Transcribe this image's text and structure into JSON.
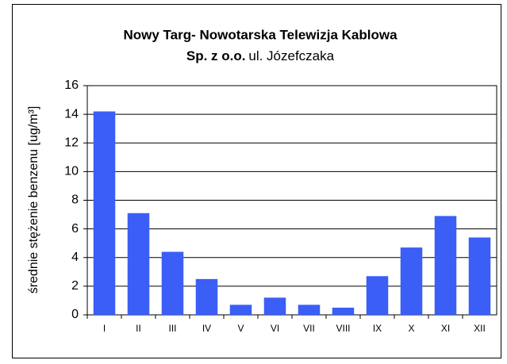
{
  "chart_data": {
    "type": "bar",
    "title": "Nowy Targ- Nowotarska Telewizja Kablowa",
    "subtitle_bold": "Sp. z o.o.",
    "subtitle": "ul. Józefczaka",
    "y_label": "średnie stężenie benzenu  [ug/m³]",
    "categories": [
      "I",
      "II",
      "III",
      "IV",
      "V",
      "VI",
      "VII",
      "VIII",
      "IX",
      "X",
      "XI",
      "XII"
    ],
    "values": [
      14.2,
      7.1,
      4.4,
      2.5,
      0.7,
      1.2,
      0.7,
      0.5,
      2.7,
      4.7,
      6.9,
      5.4
    ],
    "color": "#3b5ef7",
    "ylim": [
      0,
      16
    ],
    "yticks": [
      0,
      2,
      4,
      6,
      8,
      10,
      12,
      14,
      16
    ],
    "grid": true
  }
}
